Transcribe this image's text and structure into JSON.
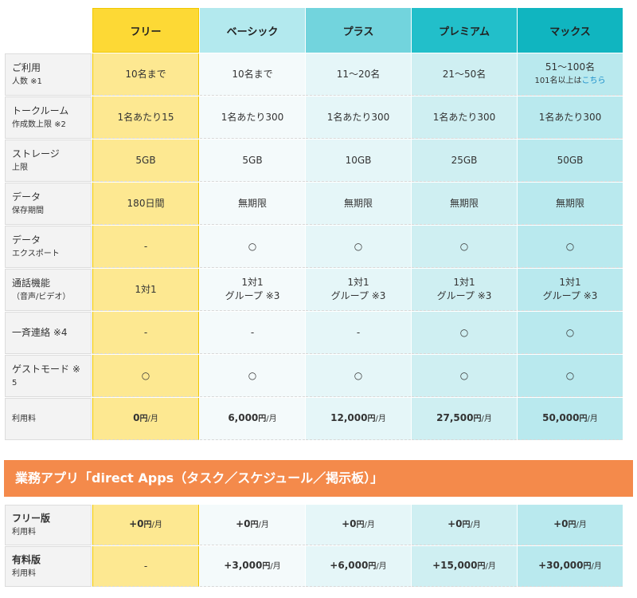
{
  "plans": {
    "headers": [
      "フリー",
      "ベーシック",
      "プラス",
      "プレミアム",
      "マックス"
    ],
    "rows": [
      {
        "label_main": "ご利用",
        "label_sub": "人数 ※1",
        "cells": [
          "10名まで",
          "10名まで",
          "11～20名",
          "21～50名",
          "51～100名"
        ],
        "max_note": "101名以上は",
        "max_link": "こちら"
      },
      {
        "label_main": "トークルーム",
        "label_sub": "作成数上限 ※2",
        "cells": [
          "1名あたり15",
          "1名あたり300",
          "1名あたり300",
          "1名あたり300",
          "1名あたり300"
        ]
      },
      {
        "label_main": "ストレージ",
        "label_sub": "上限",
        "cells": [
          "5GB",
          "5GB",
          "10GB",
          "25GB",
          "50GB"
        ]
      },
      {
        "label_main": "データ",
        "label_sub": "保存期間",
        "cells": [
          "180日間",
          "無期限",
          "無期限",
          "無期限",
          "無期限"
        ]
      },
      {
        "label_main": "データ",
        "label_sub": "エクスポート",
        "cells": [
          "-",
          "○",
          "○",
          "○",
          "○"
        ]
      },
      {
        "label_main": "通話機能",
        "label_sub": "（音声/ビデオ）",
        "cells": [
          "1対1",
          "1対1",
          "1対1",
          "1対1",
          "1対1"
        ],
        "group": "グループ ※3"
      },
      {
        "label_main": "一斉連絡 ※4",
        "label_sub": "",
        "cells": [
          "-",
          "-",
          "-",
          "○",
          "○"
        ]
      },
      {
        "label_main": "ゲストモード ※",
        "label_sub": "5",
        "cells": [
          "○",
          "○",
          "○",
          "○",
          "○"
        ]
      }
    ],
    "price_label": "利用料",
    "prices": [
      "0",
      "6,000",
      "12,000",
      "27,500",
      "50,000"
    ],
    "unit": "円",
    "per": "/月"
  },
  "apps": {
    "title": "業務アプリ「direct Apps（タスク／スケジュール／掲示板）」",
    "free": {
      "label_main": "フリー版",
      "label_sub": "利用料",
      "prices": [
        "+0",
        "+0",
        "+0",
        "+0",
        "+0"
      ]
    },
    "paid": {
      "label_main": "有料版",
      "label_sub": "利用料",
      "prices": [
        "-",
        "+3,000",
        "+6,000",
        "+15,000",
        "+30,000"
      ]
    }
  },
  "colors": {
    "free_header": "#fdd935",
    "accent_teal": "#0b8a90",
    "accent_orange": "#ee7d3d",
    "banner": "#f48a4b",
    "link": "#1b8fcb"
  }
}
